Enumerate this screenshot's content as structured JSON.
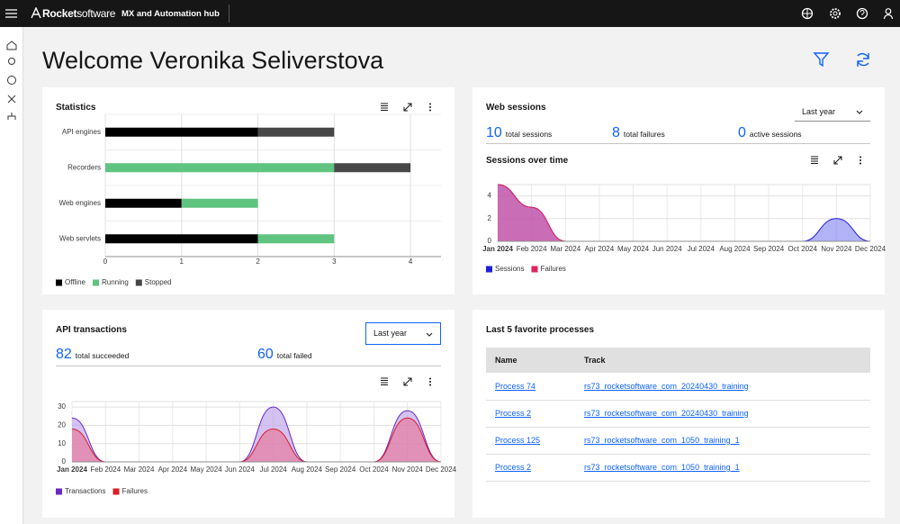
{
  "header": {
    "brand": "Rocket",
    "brand_suffix": "software",
    "app_name": "MX and Automation hub"
  },
  "title": "Welcome Veronika Seliverstova",
  "statistics": {
    "title": "Statistics",
    "chart": {
      "type": "hbar",
      "stacked": true,
      "categories": [
        "API engines",
        "Recorders",
        "Web engines",
        "Web servlets"
      ],
      "series": [
        {
          "name": "Offline",
          "color": "#000000",
          "values": [
            2,
            0,
            1,
            2
          ]
        },
        {
          "name": "Running",
          "color": "#5ec47f",
          "values": [
            0,
            3,
            1,
            1
          ]
        },
        {
          "name": "Stopped",
          "color": "#474747",
          "values": [
            1,
            1,
            0,
            0
          ]
        }
      ],
      "xlim": [
        0,
        4.4
      ],
      "xticks": [
        0,
        1,
        2,
        3,
        4
      ],
      "grid": true
    }
  },
  "web_sessions": {
    "title": "Web sessions",
    "period": "Last year",
    "stats": [
      {
        "value": 10,
        "label": "total sessions"
      },
      {
        "value": 8,
        "label": "total failures"
      },
      {
        "value": 0,
        "label": "active sessions"
      }
    ],
    "chart": {
      "type": "area",
      "title": "Sessions over time",
      "categories": [
        "Jan 2024",
        "Feb 2024",
        "Mar 2024",
        "Apr 2024",
        "May 2024",
        "Jun 2024",
        "Jul 2024",
        "Aug 2024",
        "Sep 2024",
        "Oct 2024",
        "Nov 2024",
        "Dec 2024"
      ],
      "series": [
        {
          "name": "Sessions",
          "color": "#1f1fdb",
          "fill": "#7f7ff2",
          "values": [
            5,
            3,
            0,
            0,
            0,
            0,
            0,
            0,
            0,
            0,
            2,
            0
          ]
        },
        {
          "name": "Failures",
          "color": "#e0245e",
          "fill": "#d8408a",
          "values": [
            5,
            3,
            0,
            0,
            0,
            0,
            0,
            0,
            0,
            0,
            0,
            0
          ]
        }
      ],
      "ylim": [
        0,
        5
      ],
      "yticks": [
        0,
        2,
        4
      ],
      "grid": true
    }
  },
  "api_transactions": {
    "title": "API transactions",
    "period": "Last year",
    "stats": [
      {
        "value": 82,
        "label": "total succeeded"
      },
      {
        "value": 60,
        "label": "total failed"
      }
    ],
    "chart": {
      "type": "area",
      "categories": [
        "Jan 2024",
        "Feb 2024",
        "Mar 2024",
        "Apr 2024",
        "May 2024",
        "Jun 2024",
        "Jul 2024",
        "Aug 2024",
        "Sep 2024",
        "Oct 2024",
        "Nov 2024",
        "Dec 2024"
      ],
      "series": [
        {
          "name": "Transactions",
          "color": "#6929c4",
          "fill": "#b79ae8",
          "values": [
            24,
            0,
            0,
            0,
            0,
            0,
            30,
            0,
            0,
            0,
            28,
            0
          ]
        },
        {
          "name": "Failures",
          "color": "#da1e28",
          "fill": "#ea6f93",
          "values": [
            18,
            0,
            0,
            0,
            0,
            0,
            18,
            0,
            0,
            0,
            24,
            0
          ]
        }
      ],
      "ylim": [
        0,
        33
      ],
      "yticks": [
        0,
        10,
        20,
        30
      ],
      "grid": true
    }
  },
  "favorites": {
    "title": "Last 5 favorite processes",
    "columns": [
      "Name",
      "Track"
    ],
    "rows": [
      [
        "Process 74",
        "rs73_rocketsoftware_com_20240430_training"
      ],
      [
        "Process 2",
        "rs73_rocketsoftware_com_20240430_training"
      ],
      [
        "Process 125",
        "rs73_rocketsoftware_com_1050_training_1"
      ],
      [
        "Process 2",
        "rs73_rocketsoftware_com_1050_training_1"
      ]
    ]
  }
}
